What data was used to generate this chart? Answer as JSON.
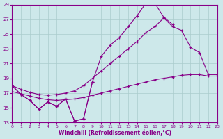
{
  "xlabel": "Windchill (Refroidissement éolien,°C)",
  "xlim": [
    0,
    23
  ],
  "ylim": [
    13,
    29
  ],
  "yticks": [
    13,
    15,
    17,
    19,
    21,
    23,
    25,
    27,
    29
  ],
  "xticks": [
    0,
    1,
    2,
    3,
    4,
    5,
    6,
    7,
    8,
    9,
    10,
    11,
    12,
    13,
    14,
    15,
    16,
    17,
    18,
    19,
    20,
    21,
    22,
    23
  ],
  "bg_color": "#cde8ea",
  "line_color": "#880088",
  "grid_color": "#aacccc",
  "series": [
    {
      "x": [
        0,
        1,
        2,
        3,
        4,
        5,
        6,
        7,
        8,
        9
      ],
      "y": [
        18.0,
        16.8,
        16.0,
        14.8,
        15.8,
        15.2,
        16.2,
        13.2,
        13.5,
        18.5
      ]
    },
    {
      "x": [
        0,
        1,
        2,
        3,
        4,
        5,
        6,
        7,
        8,
        9,
        10,
        11,
        12,
        13,
        14,
        15,
        16,
        17,
        18,
        19,
        20,
        21,
        22,
        23
      ],
      "y": [
        17.2,
        16.9,
        16.6,
        16.3,
        16.1,
        16.0,
        16.1,
        16.2,
        16.4,
        16.7,
        17.0,
        17.3,
        17.6,
        17.9,
        18.2,
        18.5,
        18.8,
        19.0,
        19.2,
        19.4,
        19.5,
        19.5,
        19.3,
        19.3
      ]
    },
    {
      "x": [
        0,
        1,
        2,
        3,
        4,
        5,
        6,
        7,
        8,
        9,
        10,
        11,
        12,
        13,
        14,
        15,
        16,
        17,
        18,
        19,
        20,
        21,
        22,
        23
      ],
      "y": [
        18.0,
        17.5,
        17.1,
        16.8,
        16.7,
        16.8,
        17.0,
        17.3,
        18.0,
        19.0,
        20.0,
        21.0,
        22.0,
        23.0,
        24.0,
        25.2,
        26.0,
        27.2,
        26.0,
        25.5,
        23.2,
        22.5,
        19.5,
        19.5
      ]
    },
    {
      "x": [
        0,
        1,
        2,
        3,
        4,
        5,
        6,
        7,
        8,
        9,
        10,
        11,
        12,
        13,
        14,
        15,
        16,
        17,
        18
      ],
      "y": [
        18.0,
        16.8,
        16.0,
        14.8,
        15.8,
        15.2,
        16.2,
        13.2,
        13.5,
        18.5,
        22.0,
        23.5,
        24.5,
        26.0,
        27.5,
        29.2,
        29.2,
        27.3,
        26.3
      ]
    }
  ]
}
